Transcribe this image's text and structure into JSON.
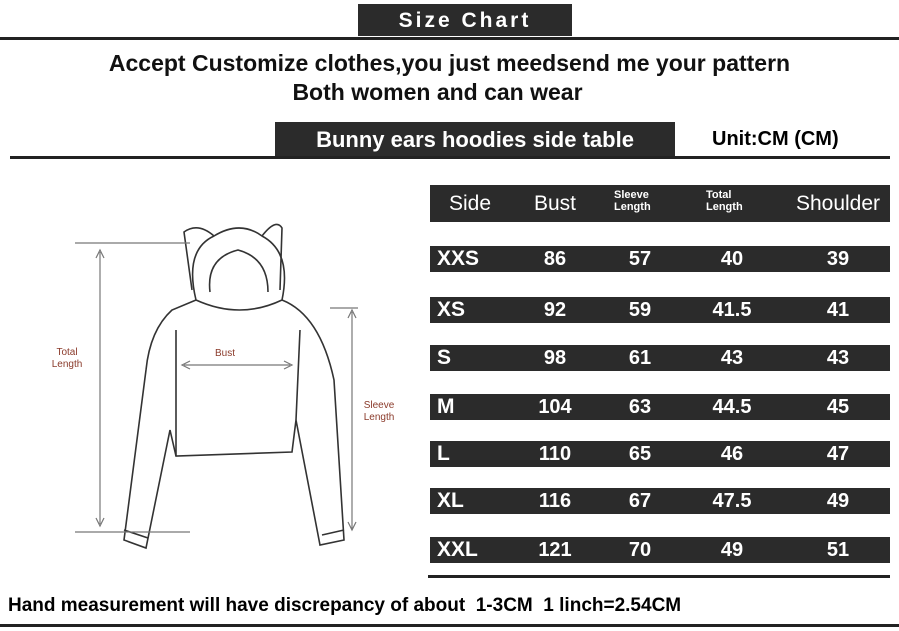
{
  "header": {
    "title": "Size Chart",
    "lines": [
      "Accept Customize clothes,you just meedsend me your pattern",
      "Both women and can wear"
    ]
  },
  "table": {
    "title": "Bunny ears hoodies side table",
    "unit": "Unit:CM (CM)",
    "header": [
      "Side",
      "Bust",
      "Sleeve Length",
      "Total Length",
      "Shoulder"
    ],
    "rows": [
      [
        "XXS",
        "86",
        "57",
        "40",
        "39"
      ],
      [
        "XS",
        "92",
        "59",
        "41.5",
        "41"
      ],
      [
        "S",
        "98",
        "61",
        "43",
        "43"
      ],
      [
        "M",
        "104",
        "63",
        "44.5",
        "45"
      ],
      [
        "L",
        "110",
        "65",
        "46",
        "47"
      ],
      [
        "XL",
        "116",
        "67",
        "47.5",
        "49"
      ],
      [
        "XXL",
        "121",
        "70",
        "49",
        "51"
      ]
    ]
  },
  "diagram": {
    "total_length": "Total Length",
    "bust": "Bust",
    "sleeve_length": "Sleeve Length"
  },
  "footer": "Hand measurement will have discrepancy of about  1-3CM  1 linch=2.54CM"
}
